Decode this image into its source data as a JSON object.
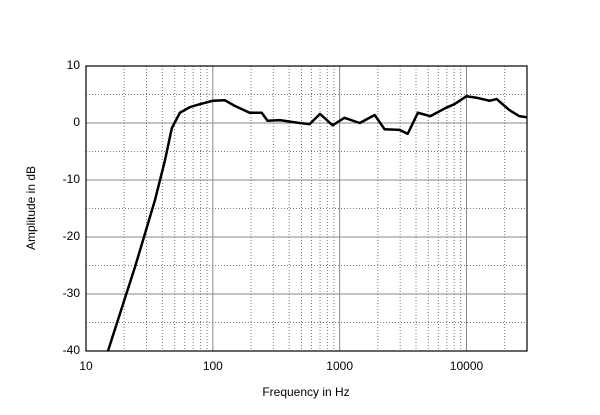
{
  "chart_data": {
    "type": "line",
    "x_label": "Frequency in Hz",
    "y_label": "Amplitude in dB",
    "x": [
      14.9,
      20.3,
      24.3,
      29,
      35,
      42,
      47.5,
      55,
      66,
      79,
      100,
      124,
      149,
      195,
      243,
      270,
      337,
      482,
      580,
      700,
      880,
      1090,
      1440,
      1890,
      2260,
      2970,
      3440,
      4140,
      5200,
      6800,
      8030,
      10000,
      12200,
      15200,
      17300,
      21700,
      26100,
      30000
    ],
    "values": [
      -40,
      -30.7,
      -25.3,
      -19.6,
      -13.5,
      -6.5,
      -0.9,
      1.8,
      2.8,
      3.3,
      3.9,
      4.0,
      3.0,
      1.8,
      1.8,
      0.4,
      0.5,
      0,
      -0.2,
      1.6,
      -0.4,
      0.9,
      0,
      1.4,
      -1.1,
      -1.2,
      -1.9,
      1.8,
      1.2,
      2.6,
      3.3,
      4.7,
      4.4,
      3.9,
      4.2,
      2.3,
      1.2,
      1.0
    ],
    "color": "#000000",
    "xscale": "log",
    "xlim": [
      10,
      30000
    ],
    "xticks": [
      10,
      100,
      1000,
      10000
    ],
    "ylim": [
      -40,
      10
    ],
    "yticks": [
      -40,
      -30,
      -20,
      -10,
      0,
      10
    ],
    "grid": true
  }
}
